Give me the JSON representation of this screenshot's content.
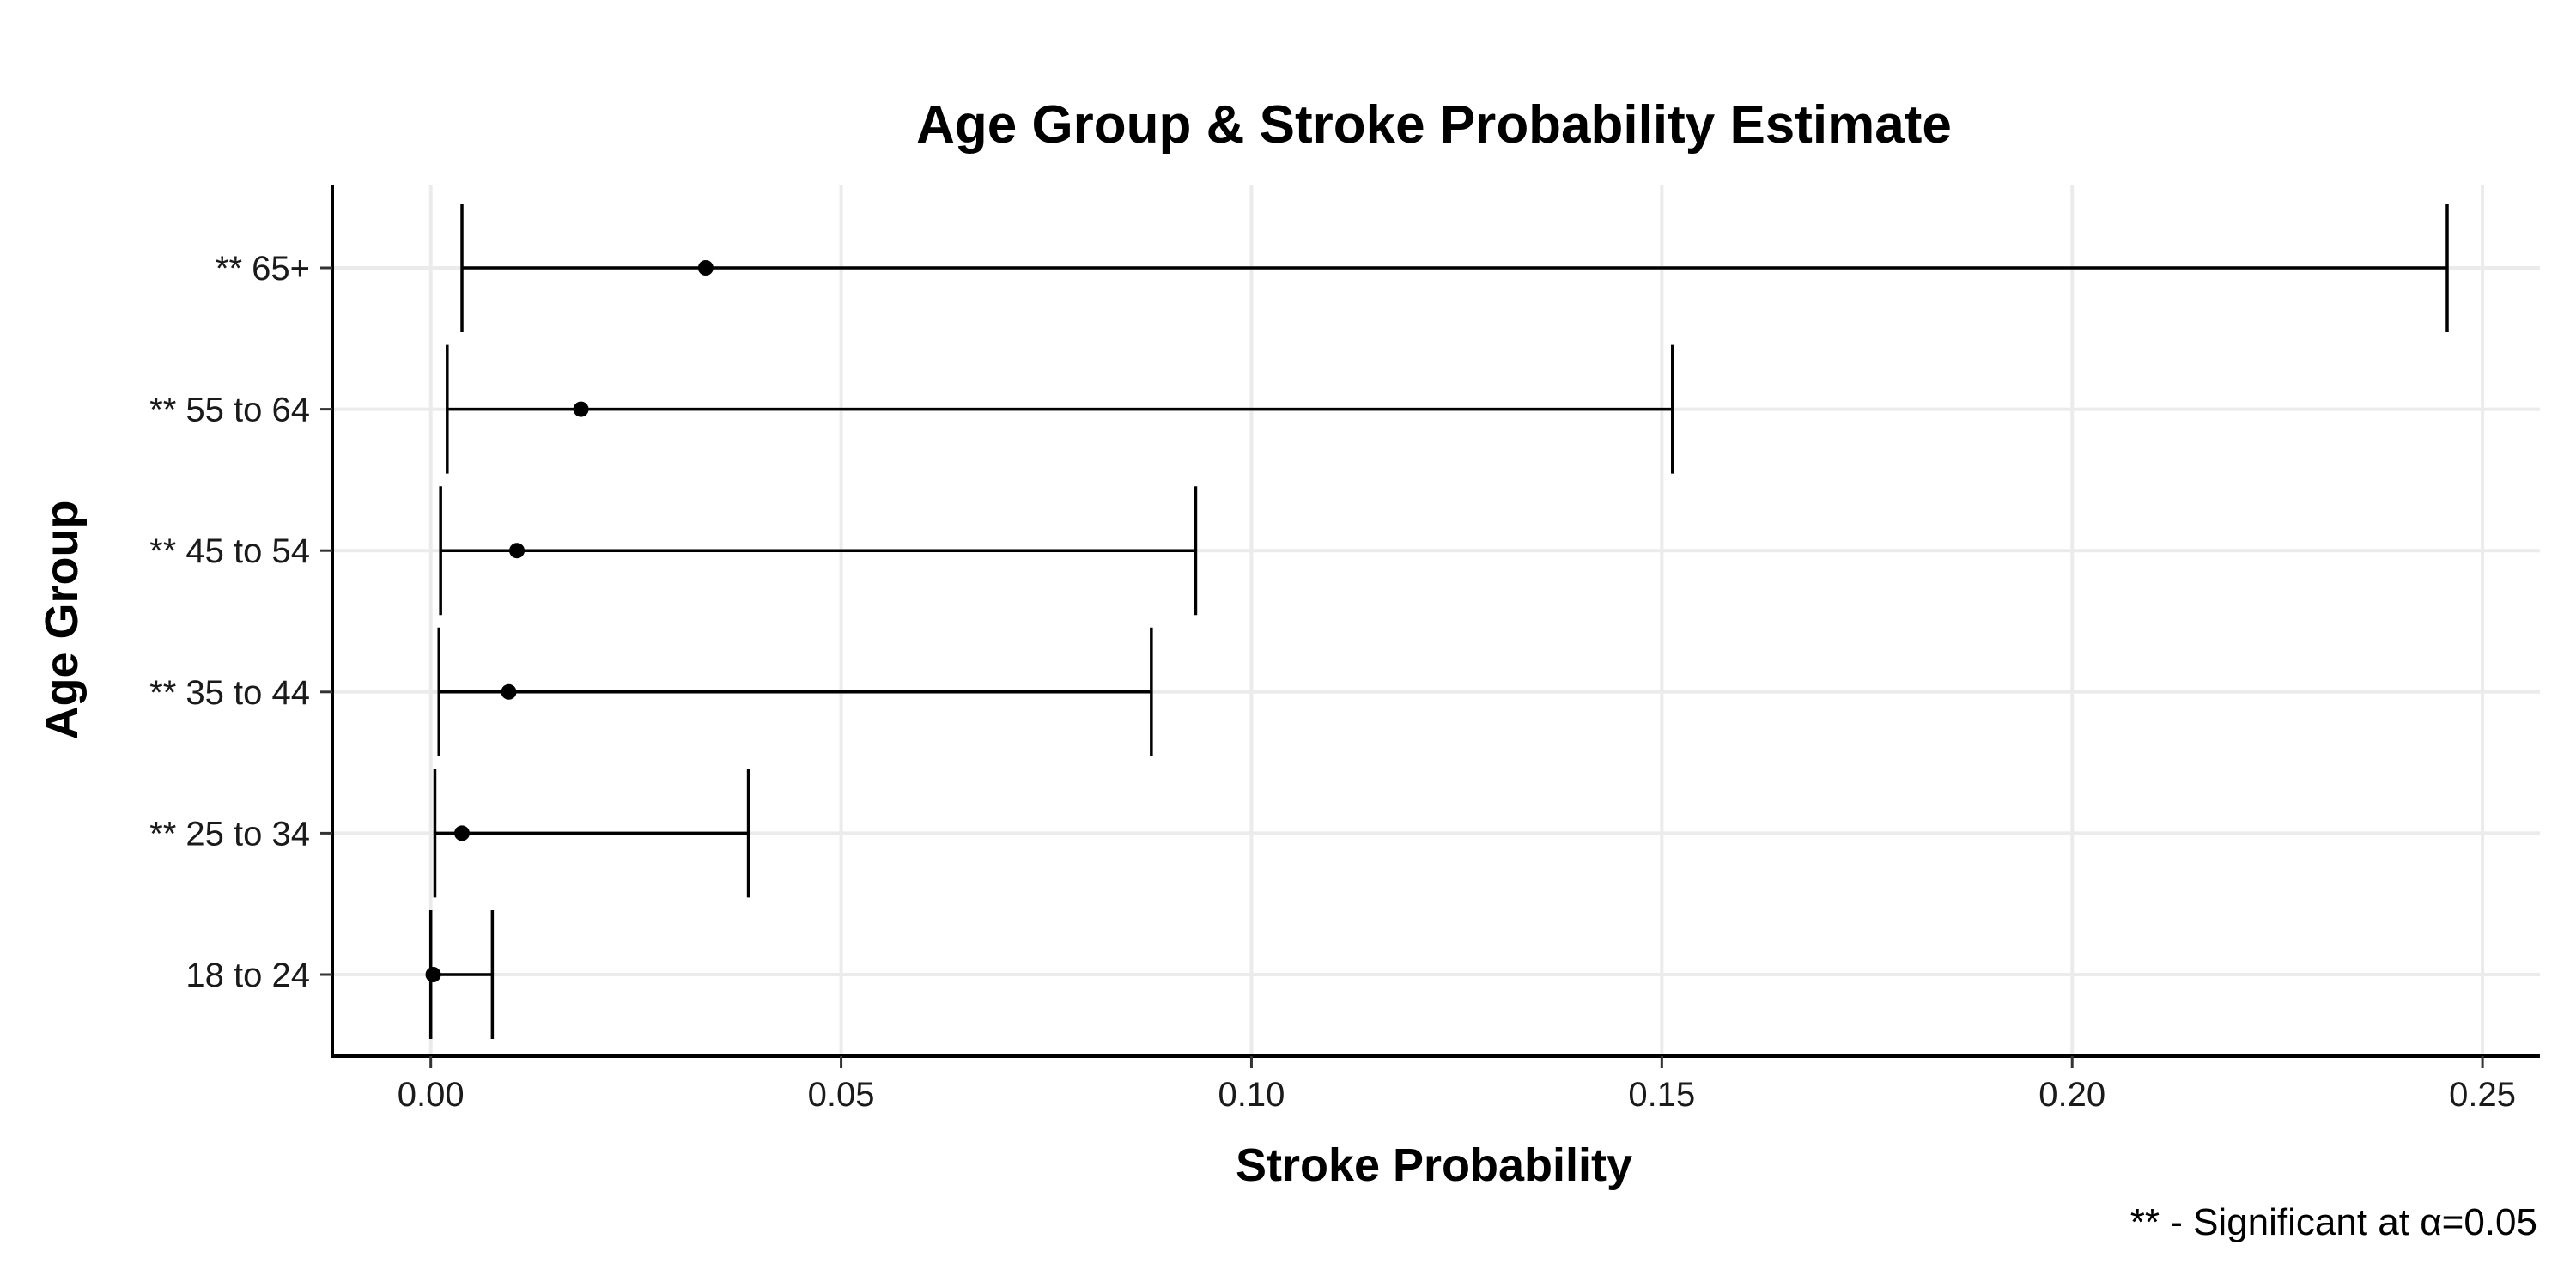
{
  "chart_data": {
    "type": "errorbar",
    "title": "Age Group & Stroke Probability Estimate",
    "xlabel": "Stroke Probability",
    "ylabel": "Age Group",
    "caption": "** - Significant at α=0.05",
    "xlim": [
      -0.012,
      0.257
    ],
    "xticks": [
      0.0,
      0.05,
      0.1,
      0.15,
      0.2,
      0.25
    ],
    "xtick_labels": [
      "0.00",
      "0.05",
      "0.10",
      "0.15",
      "0.20",
      "0.25"
    ],
    "grid": true,
    "categories": [
      "18 to 24",
      "** 25 to 34",
      "** 35 to 44",
      "** 45 to 54",
      "** 55 to 64",
      "** 65+"
    ],
    "estimates": [
      0.0003,
      0.0038,
      0.0095,
      0.0105,
      0.0183,
      0.0335
    ],
    "lower": [
      0.0,
      0.0005,
      0.001,
      0.0012,
      0.002,
      0.0038
    ],
    "upper": [
      0.0075,
      0.0387,
      0.0878,
      0.0932,
      0.1513,
      0.2457
    ],
    "colors": {
      "marks": "#000000",
      "grid": "#ebebeb",
      "axis": "#000000"
    }
  }
}
